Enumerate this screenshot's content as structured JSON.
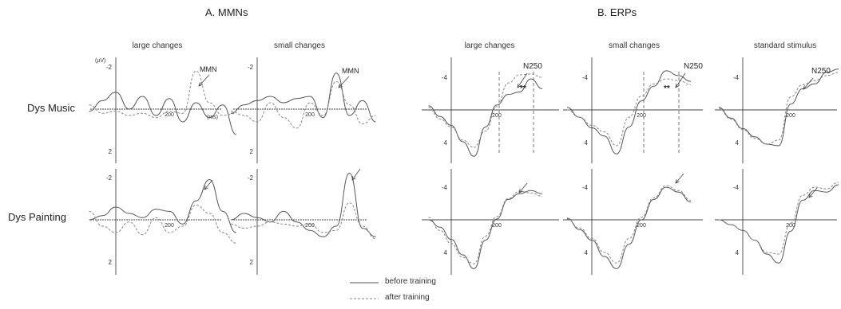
{
  "sections": {
    "mmn_title": "A. MMNs",
    "erp_title": "B. ERPs"
  },
  "columns": [
    "large changes",
    "small changes",
    "large changes",
    "small changes",
    "standard stimulus"
  ],
  "rows": [
    "Dys Music",
    "Dys Painting"
  ],
  "axis_text": {
    "uv": "(µV)",
    "ms": "(ms)",
    "y_neg2": "-2",
    "y_pos2": "2",
    "y_neg4": "-4",
    "y_pos4": "4",
    "x_200": "200"
  },
  "annotations": {
    "mmn": "MMN",
    "n250": "N250",
    "stars": "**"
  },
  "legend": {
    "before": "before training",
    "after": "after training"
  },
  "colors": {
    "before": "#555555",
    "after": "#888888",
    "axis": "#444444"
  },
  "chart_data": [
    {
      "type": "line",
      "panel": "MMN large changes",
      "row": "Dys Music",
      "ylim": [
        2.4,
        -2.6
      ],
      "x": [
        -100,
        -50,
        0,
        50,
        100,
        150,
        200,
        250,
        300,
        350,
        400,
        450
      ],
      "series": [
        {
          "name": "before training",
          "values": [
            0.1,
            -0.4,
            -0.8,
            0,
            -0.6,
            0.3,
            -0.5,
            0.6,
            -0.3,
            0.4,
            -0.2,
            1.2
          ]
        },
        {
          "name": "after training",
          "values": [
            -0.2,
            0.2,
            0.1,
            0.3,
            0.2,
            0.4,
            0.1,
            0.2,
            -1.8,
            -0.3,
            0.3,
            0.2
          ]
        }
      ]
    },
    {
      "type": "line",
      "panel": "MMN small changes",
      "row": "Dys Music",
      "ylim": [
        2.4,
        -2.6
      ],
      "x": [
        -100,
        -50,
        0,
        50,
        100,
        150,
        200,
        250,
        300,
        350,
        400,
        450
      ],
      "series": [
        {
          "name": "before training",
          "values": [
            0.2,
            -0.2,
            -0.4,
            -0.6,
            -0.3,
            -0.5,
            -0.6,
            0.4,
            -1.7,
            0.3,
            -0.4,
            0.6
          ]
        },
        {
          "name": "after training",
          "values": [
            0.1,
            0.3,
            0.6,
            -0.3,
            0.4,
            0.9,
            -0.3,
            0.3,
            -1.3,
            -0.2,
            0.7,
            0.3
          ]
        }
      ]
    },
    {
      "type": "line",
      "panel": "MMN large changes",
      "row": "Dys Painting",
      "ylim": [
        2.4,
        -2.6
      ],
      "x": [
        -100,
        -50,
        0,
        50,
        100,
        150,
        200,
        250,
        300,
        350,
        400,
        450
      ],
      "series": [
        {
          "name": "before training",
          "values": [
            0,
            -0.2,
            -0.6,
            -0.3,
            -0.1,
            -0.5,
            -0.4,
            0.2,
            -0.9,
            -1.9,
            -0.4,
            0.6
          ]
        },
        {
          "name": "after training",
          "values": [
            -0.4,
            0.3,
            0.6,
            0.1,
            0.7,
            -0.1,
            0.6,
            0.3,
            -0.7,
            -0.3,
            0.6,
            1.1
          ]
        }
      ]
    },
    {
      "type": "line",
      "panel": "MMN small changes",
      "row": "Dys Painting",
      "ylim": [
        2.4,
        -2.6
      ],
      "x": [
        -100,
        -50,
        0,
        50,
        100,
        150,
        200,
        250,
        300,
        350,
        400,
        450
      ],
      "series": [
        {
          "name": "before training",
          "values": [
            0,
            -0.3,
            -0.1,
            0.1,
            -0.4,
            0.1,
            0.5,
            0.8,
            0.3,
            -2.2,
            0.4,
            0.8
          ]
        },
        {
          "name": "after training",
          "values": [
            0.2,
            0.4,
            0.3,
            0.1,
            0.2,
            0.3,
            0.2,
            0.6,
            0.5,
            -0.8,
            0.3,
            0.9
          ]
        }
      ]
    },
    {
      "type": "line",
      "panel": "ERP large changes",
      "row": "Dys Music",
      "ylim": [
        7,
        -6
      ],
      "x": [
        -100,
        -50,
        0,
        50,
        100,
        150,
        200,
        250,
        300,
        350,
        400
      ],
      "series": [
        {
          "name": "before training",
          "values": [
            -0.5,
            0.8,
            1.9,
            3.9,
            5.7,
            2.1,
            -0.6,
            -1.9,
            -2.2,
            -3.8,
            -2.6
          ]
        },
        {
          "name": "after training",
          "values": [
            -0.3,
            1.1,
            2.1,
            3.7,
            4.6,
            2.6,
            -0.4,
            -3.3,
            -4.3,
            -4.4,
            -4.0
          ]
        }
      ]
    },
    {
      "type": "line",
      "panel": "ERP small changes",
      "row": "Dys Music",
      "ylim": [
        7,
        -6
      ],
      "x": [
        -100,
        -50,
        0,
        50,
        100,
        150,
        200,
        250,
        300,
        350,
        400
      ],
      "series": [
        {
          "name": "before training",
          "values": [
            -0.3,
            0.9,
            2.2,
            3.2,
            5.4,
            2.1,
            -1.1,
            -2.9,
            -4.8,
            -4.2,
            -3.5
          ]
        },
        {
          "name": "after training",
          "values": [
            0,
            0.9,
            1.9,
            2.7,
            4.4,
            0.9,
            -1.7,
            -3.2,
            -3.8,
            -3.6,
            -3.1
          ]
        }
      ]
    },
    {
      "type": "line",
      "panel": "ERP standard stimulus",
      "row": "Dys Music",
      "ylim": [
        7,
        -6
      ],
      "x": [
        -100,
        -50,
        0,
        50,
        100,
        150,
        200,
        250,
        300,
        350,
        400
      ],
      "series": [
        {
          "name": "before training",
          "values": [
            -0.3,
            1.0,
            2.3,
            3.3,
            4.2,
            4.4,
            -0.7,
            -2.6,
            -3.2,
            -4.6,
            -5.0
          ]
        },
        {
          "name": "after training",
          "values": [
            -0.2,
            1.1,
            2.4,
            3.5,
            4.2,
            3.7,
            -1.6,
            -3.1,
            -3.6,
            -4.2,
            -4.6
          ]
        }
      ]
    },
    {
      "type": "line",
      "panel": "ERP large changes",
      "row": "Dys Painting",
      "ylim": [
        7,
        -6
      ],
      "x": [
        -100,
        -50,
        0,
        50,
        100,
        150,
        200,
        250,
        300,
        350,
        400
      ],
      "series": [
        {
          "name": "before training",
          "values": [
            0,
            0.9,
            2.4,
            4.3,
            6.0,
            2.5,
            -0.1,
            -2.5,
            -3.2,
            -3.6,
            -3.2
          ]
        },
        {
          "name": "after training",
          "values": [
            -0.3,
            1.3,
            2.9,
            4.6,
            5.4,
            2.0,
            -0.4,
            -2.6,
            -3.5,
            -3.3,
            -2.9
          ]
        }
      ]
    },
    {
      "type": "line",
      "panel": "ERP small changes",
      "row": "Dys Painting",
      "ylim": [
        7,
        -6
      ],
      "x": [
        -100,
        -50,
        0,
        50,
        100,
        150,
        200,
        250,
        300,
        350,
        400
      ],
      "series": [
        {
          "name": "before training",
          "values": [
            -0.2,
            1.2,
            2.5,
            4.5,
            6.0,
            3.0,
            0.0,
            -2.5,
            -4.0,
            -3.4,
            -2.2
          ]
        },
        {
          "name": "after training",
          "values": [
            -0.1,
            1.0,
            2.3,
            4.0,
            5.3,
            2.3,
            -0.3,
            -2.7,
            -4.2,
            -3.6,
            -2.4
          ]
        }
      ]
    },
    {
      "type": "line",
      "panel": "ERP standard stimulus",
      "row": "Dys Painting",
      "ylim": [
        7,
        -6
      ],
      "x": [
        -100,
        -50,
        0,
        50,
        100,
        150,
        200,
        250,
        300,
        350,
        400
      ],
      "series": [
        {
          "name": "before training",
          "values": [
            0,
            0.6,
            1.3,
            2.5,
            4.2,
            5.3,
            1.4,
            -2.4,
            -3.6,
            -3.4,
            -4.3
          ]
        },
        {
          "name": "after training",
          "values": [
            0,
            0.6,
            1.3,
            2.5,
            4.0,
            4.2,
            0.4,
            -3.0,
            -4.0,
            -3.8,
            -4.6
          ]
        }
      ]
    }
  ]
}
